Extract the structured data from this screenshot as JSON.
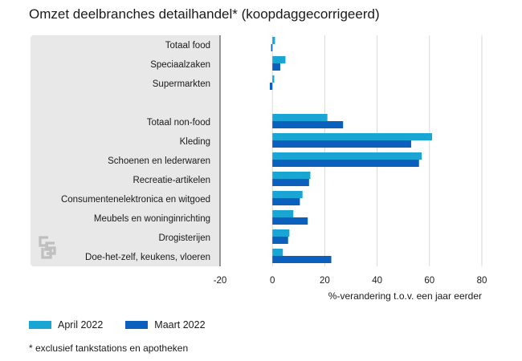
{
  "title": "Omzet deelbranches detailhandel* (koopdaggecorrigeerd)",
  "footnote": "* exclusief tankstations en apotheken",
  "chart_data": {
    "type": "bar",
    "orientation": "horizontal",
    "categories": [
      "Totaal food",
      "Speciaalzaken",
      "Supermarkten",
      "",
      "Totaal non-food",
      "Kleding",
      "Schoenen en lederwaren",
      "Recreatie-artikelen",
      "Consumentenelektronica en witgoed",
      "Meubels en woninginrichting",
      "Drogisterijen",
      "Doe-het-zelf, keukens, vloeren"
    ],
    "series": [
      {
        "name": "April 2022",
        "color": "#1aa6d4",
        "values": [
          1,
          5,
          0.7,
          null,
          21,
          61,
          57,
          14.5,
          11.5,
          8,
          6.5,
          4
        ]
      },
      {
        "name": "Maart 2022",
        "color": "#0b5fbd",
        "values": [
          -0.5,
          3,
          -1,
          null,
          27,
          53,
          56,
          14,
          10.5,
          13.5,
          6,
          22.5
        ]
      }
    ],
    "xticks": [
      -20,
      0,
      20,
      40,
      60,
      80
    ],
    "xlim": [
      -20,
      80
    ],
    "xlabel": "%-verandering t.o.v. een jaar eerder",
    "grid": true,
    "legend_position": "bottom-left"
  },
  "logo": {
    "name": "cbs-logo",
    "color": "#bfbfbf"
  }
}
